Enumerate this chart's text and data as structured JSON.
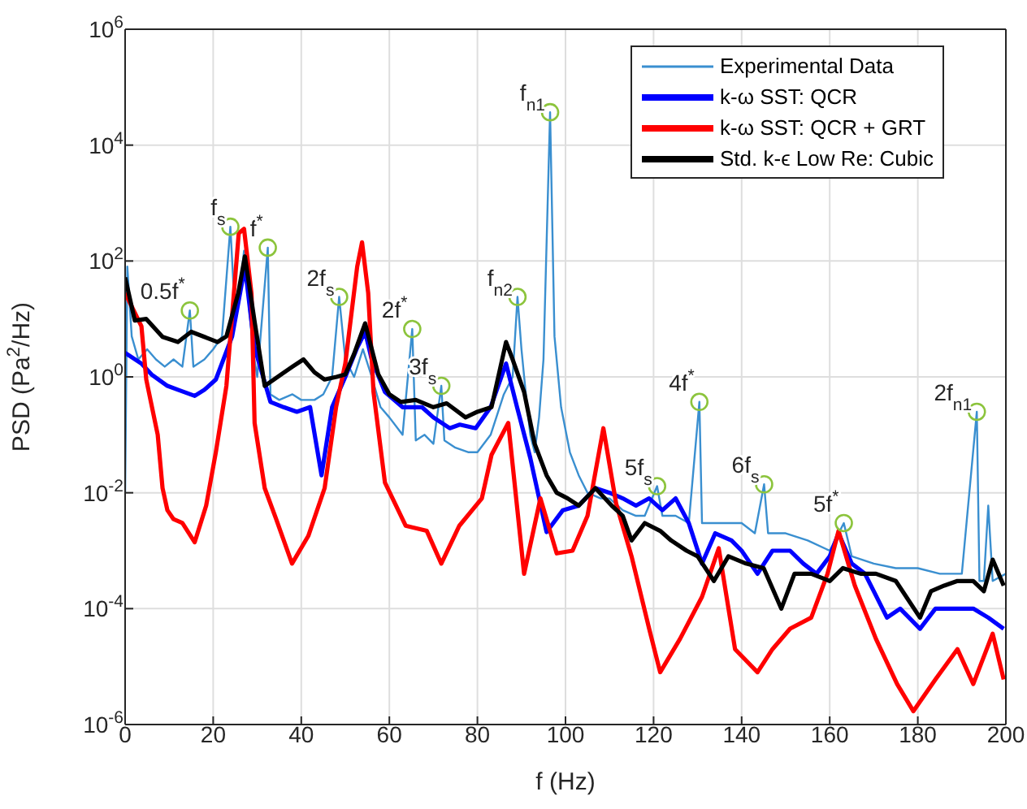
{
  "chart_data": {
    "type": "line",
    "xlabel": "f (Hz)",
    "ylabel": "PSD (Pa$^{2}$/Hz)",
    "log": "y",
    "grid": true,
    "legend": "top right",
    "xlim": [
      0,
      200
    ],
    "xticks": [
      0,
      20,
      40,
      60,
      80,
      100,
      120,
      140,
      160,
      180,
      200
    ],
    "ylim": [
      1e-06,
      1000000.0
    ],
    "yticks": [
      {
        "value": 1e-06,
        "label": "10$^{-6}$"
      },
      {
        "value": 0.0001,
        "label": "10$^{-4}$"
      },
      {
        "value": 0.01,
        "label": "10$^{-2}$"
      },
      {
        "value": 1,
        "label": "10$^{0}$"
      },
      {
        "value": 100,
        "label": "10$^{2}$"
      },
      {
        "value": 10000,
        "label": "10$^{4}$"
      },
      {
        "value": 1000000,
        "label": "10$^{6}$"
      }
    ],
    "series": [
      {
        "name": "Experimental Data",
        "color": "#3a8fd0",
        "x": [
          0,
          0.5,
          1.5,
          3,
          5,
          7,
          9,
          11,
          13,
          14.7,
          15.5,
          18,
          20,
          22,
          23.9,
          25,
          26,
          27,
          29,
          30,
          32.4,
          33,
          35,
          38,
          40,
          43,
          45,
          47,
          48.6,
          50,
          52,
          54,
          56,
          58,
          60,
          63,
          65.2,
          66,
          68,
          70,
          71.8,
          72.5,
          75,
          78,
          80,
          83,
          86,
          88,
          89.1,
          90,
          91,
          92,
          93,
          94,
          95,
          96.5,
          97.5,
          99,
          101,
          103,
          105,
          108,
          110,
          113,
          116,
          118,
          120.8,
          122,
          125,
          128,
          130.4,
          131,
          133,
          136,
          140,
          143,
          145.1,
          146,
          150,
          155,
          160,
          163.2,
          165,
          170,
          175,
          180,
          185,
          190,
          193.4,
          194,
          195,
          196,
          197,
          200
        ],
        "values": [
          0.01,
          80,
          5,
          2,
          3,
          2,
          1.5,
          2,
          1.5,
          14,
          1.5,
          2,
          3,
          5,
          390,
          10,
          30,
          150,
          3,
          1,
          170,
          0.5,
          0.4,
          0.5,
          0.4,
          0.4,
          0.5,
          1,
          24,
          2,
          1,
          3,
          1,
          0.3,
          0.2,
          0.1,
          6.7,
          0.08,
          0.1,
          0.07,
          0.7,
          0.08,
          0.06,
          0.05,
          0.05,
          0.1,
          0.5,
          1,
          24,
          3,
          0.5,
          0.1,
          0.05,
          0.2,
          2,
          37000,
          5,
          0.3,
          0.05,
          0.02,
          0.01,
          0.008,
          0.008,
          0.005,
          0.004,
          0.004,
          0.013,
          0.004,
          0.004,
          0.003,
          0.37,
          0.003,
          0.003,
          0.003,
          0.003,
          0.002,
          0.014,
          0.002,
          0.002,
          0.0015,
          0.001,
          0.003,
          0.0008,
          0.0006,
          0.0005,
          0.0005,
          0.0004,
          0.0004,
          0.25,
          0.0003,
          0.0003,
          0.006,
          0.0003,
          0.0004
        ]
      },
      {
        "name": "k-ω SST: QCR",
        "color": "#0000ff",
        "x": [
          0,
          3.7,
          6,
          9.6,
          12,
          15.8,
          18,
          20.6,
          24.3,
          27.2,
          29.4,
          33,
          36,
          39,
          42,
          44.6,
          47,
          50,
          52.7,
          54.5,
          56,
          59,
          63,
          67.4,
          70,
          73.7,
          76,
          79.6,
          83,
          86.5,
          89,
          92,
          95.7,
          99.4,
          103,
          106.8,
          110,
          113,
          116,
          119,
          122,
          125,
          128,
          131,
          134,
          137.7,
          140,
          143.6,
          147,
          151,
          154,
          157,
          160,
          162,
          165,
          168,
          170,
          173,
          176,
          180.5,
          184,
          188,
          192.6,
          196,
          199.5
        ],
        "values": [
          2.6,
          1.7,
          1.1,
          0.7,
          0.6,
          0.47,
          0.6,
          0.9,
          5,
          80,
          3.2,
          0.37,
          0.3,
          0.25,
          0.3,
          0.02,
          0.3,
          1,
          3.2,
          6,
          2,
          0.55,
          0.3,
          0.3,
          0.2,
          0.13,
          0.15,
          0.13,
          0.3,
          1.7,
          0.3,
          0.04,
          0.0021,
          0.005,
          0.006,
          0.012,
          0.01,
          0.008,
          0.006,
          0.008,
          0.005,
          0.008,
          0.003,
          0.0006,
          0.002,
          0.0015,
          0.001,
          0.0004,
          0.001,
          0.001,
          0.0006,
          0.0004,
          0.0008,
          0.002,
          0.0006,
          0.0004,
          0.0002,
          7e-05,
          0.0001,
          4.5e-05,
          0.0001,
          0.0001,
          0.0001,
          7e-05,
          4.5e-05
        ]
      },
      {
        "name": "k-ω SST: QCR + GRT",
        "color": "#ff0000",
        "x": [
          0,
          3.7,
          4.8,
          7.4,
          8.5,
          9.6,
          11,
          13,
          15.8,
          18.4,
          20.6,
          23,
          25.8,
          27,
          28.7,
          29.4,
          31.7,
          34.3,
          37.9,
          41.6,
          45.3,
          47.9,
          50,
          52.7,
          53.8,
          55.2,
          56.4,
          59,
          63.7,
          68.5,
          71.8,
          75.9,
          81,
          83.2,
          87,
          90.6,
          94.3,
          98,
          101.6,
          105,
          108.6,
          111.5,
          115,
          119,
          121.5,
          126,
          131,
          134.8,
          138.5,
          143.6,
          147,
          151,
          155.8,
          159.5,
          162,
          165.7,
          170.5,
          175.3,
          179,
          184,
          189,
          192.6,
          197,
          199.5
        ],
        "values": [
          28,
          7.5,
          0.9,
          0.1,
          0.012,
          0.005,
          0.0035,
          0.003,
          0.0014,
          0.006,
          0.05,
          0.7,
          300,
          360,
          27,
          0.16,
          0.012,
          0.0035,
          0.0006,
          0.0018,
          0.012,
          0.3,
          1.7,
          80,
          210,
          28,
          0.55,
          0.015,
          0.0027,
          0.0022,
          0.0006,
          0.0027,
          0.008,
          0.045,
          0.16,
          0.0004,
          0.008,
          0.0009,
          0.001,
          0.004,
          0.13,
          0.0065,
          0.0008,
          4.5e-05,
          8e-06,
          3e-05,
          0.00016,
          0.0011,
          2e-05,
          8e-06,
          2e-05,
          4.5e-05,
          7e-05,
          0.0004,
          0.0022,
          0.00025,
          3e-05,
          5e-06,
          1.7e-06,
          6e-06,
          2e-05,
          5e-06,
          3.7e-05,
          6e-06
        ]
      },
      {
        "name": "Std. k-ϵ Low Re: Cubic",
        "color": "#000000",
        "x": [
          0,
          2.2,
          4.8,
          8.5,
          12,
          15,
          18,
          21,
          23,
          25.7,
          27.2,
          29.4,
          31.7,
          35.4,
          38,
          40.5,
          43,
          45.3,
          48,
          50,
          52,
          54.5,
          57.5,
          60,
          62.6,
          66,
          70,
          73,
          77.3,
          80,
          83.2,
          86.5,
          88,
          90.6,
          93,
          95.7,
          98,
          100.5,
          103,
          106.8,
          110.5,
          113,
          115,
          118,
          121.5,
          124,
          127.5,
          130,
          133.7,
          137,
          141,
          145,
          149,
          152,
          155.8,
          160,
          163,
          167,
          170.5,
          175,
          180.5,
          183,
          186,
          189,
          192.6,
          195,
          197,
          199.5
        ],
        "values": [
          52,
          9.4,
          10,
          4.9,
          4,
          6,
          4.9,
          4,
          5,
          28,
          120,
          9,
          0.7,
          1.1,
          1.5,
          2,
          1.2,
          0.9,
          1,
          1.1,
          2.5,
          8.4,
          1.1,
          0.5,
          0.37,
          0.4,
          0.3,
          0.35,
          0.2,
          0.25,
          0.3,
          4,
          2,
          0.55,
          0.07,
          0.02,
          0.01,
          0.008,
          0.006,
          0.012,
          0.006,
          0.004,
          0.0015,
          0.003,
          0.0022,
          0.0015,
          0.001,
          0.0008,
          0.0003,
          0.0008,
          0.0006,
          0.0005,
          0.0001,
          0.0004,
          0.0004,
          0.0003,
          0.0005,
          0.0004,
          0.0004,
          0.0003,
          7e-05,
          0.0002,
          0.00025,
          0.0003,
          0.0003,
          0.0002,
          0.0007,
          0.00025
        ]
      }
    ],
    "annotations": [
      {
        "text": "0.5f$^{*}$",
        "x": 14.7,
        "y": 14
      },
      {
        "text": "f$_{s}$",
        "x": 23.9,
        "y": 390
      },
      {
        "text": "f$^{*}$",
        "x": 32.4,
        "y": 170
      },
      {
        "text": "2f$_{s}$",
        "x": 48.6,
        "y": 24
      },
      {
        "text": "2f$^{*}$",
        "x": 65.2,
        "y": 6.7
      },
      {
        "text": "3f$_{s}$",
        "x": 71.8,
        "y": 0.7
      },
      {
        "text": "f$_{n2}$",
        "x": 89.1,
        "y": 24
      },
      {
        "text": "f$_{n1}$",
        "x": 96.5,
        "y": 37000
      },
      {
        "text": "5f$_{s}$",
        "x": 120.8,
        "y": 0.013
      },
      {
        "text": "4f$^{*}$",
        "x": 130.4,
        "y": 0.37
      },
      {
        "text": "6f$_{s}$",
        "x": 145.1,
        "y": 0.014
      },
      {
        "text": "5f$^{*}$",
        "x": 163.2,
        "y": 0.003
      },
      {
        "text": "2f$_{n1}$",
        "x": 193.4,
        "y": 0.25
      }
    ]
  }
}
